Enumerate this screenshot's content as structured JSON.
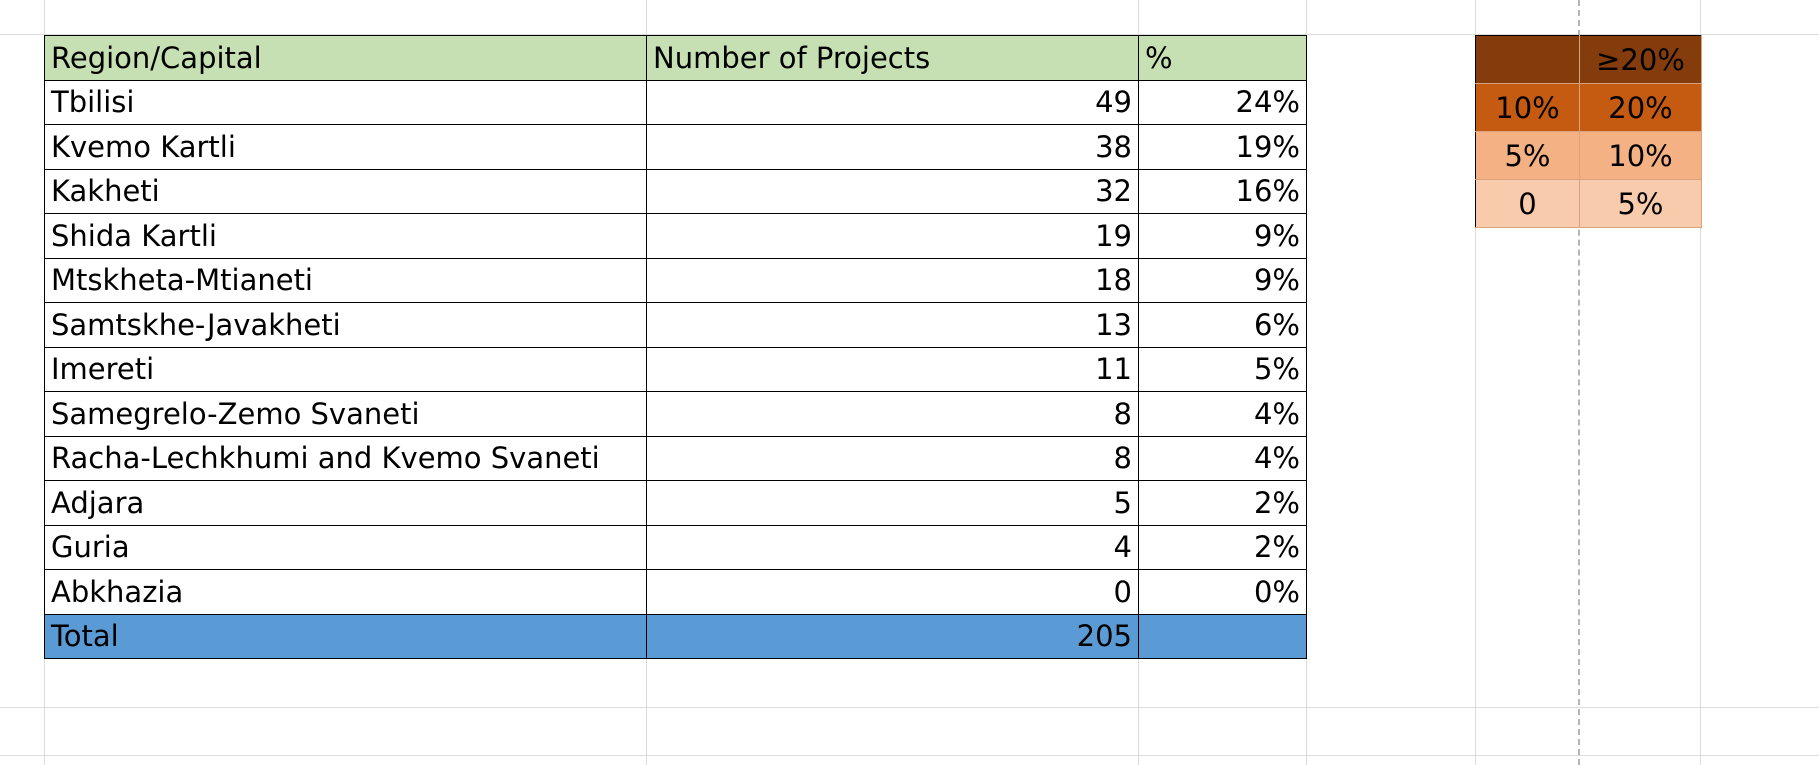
{
  "table": {
    "headers": [
      "Region/Capital",
      "Number of Projects",
      "%"
    ],
    "rows": [
      {
        "region": "Tbilisi",
        "projects": "49",
        "pct": "24%"
      },
      {
        "region": "Kvemo Kartli",
        "projects": "38",
        "pct": "19%"
      },
      {
        "region": "Kakheti",
        "projects": "32",
        "pct": "16%"
      },
      {
        "region": "Shida Kartli",
        "projects": "19",
        "pct": "9%"
      },
      {
        "region": "Mtskheta-Mtianeti",
        "projects": "18",
        "pct": "9%"
      },
      {
        "region": "Samtskhe-Javakheti",
        "projects": "13",
        "pct": "6%"
      },
      {
        "region": "Imereti",
        "projects": "11",
        "pct": "5%"
      },
      {
        "region": "Samegrelo-Zemo Svaneti",
        "projects": "8",
        "pct": "4%"
      },
      {
        "region": "Racha-Lechkhumi and Kvemo Svaneti",
        "projects": "8",
        "pct": "4%"
      },
      {
        "region": "Adjara",
        "projects": "5",
        "pct": "2%"
      },
      {
        "region": "Guria",
        "projects": "4",
        "pct": "2%"
      },
      {
        "region": "Abkhazia",
        "projects": "0",
        "pct": "0%"
      }
    ],
    "total": {
      "label": "Total",
      "projects": "205",
      "pct": ""
    }
  },
  "legend": {
    "rows": [
      {
        "from": "",
        "to": "≥20%",
        "color": "#843c0c"
      },
      {
        "from": "10%",
        "to": "20%",
        "color": "#c55a11"
      },
      {
        "from": "5%",
        "to": "10%",
        "color": "#f4b183"
      },
      {
        "from": "0",
        "to": "5%",
        "color": "#f8cbad"
      }
    ]
  },
  "colors": {
    "header_fill": "#c6e0b4",
    "total_fill": "#5b9bd5"
  }
}
